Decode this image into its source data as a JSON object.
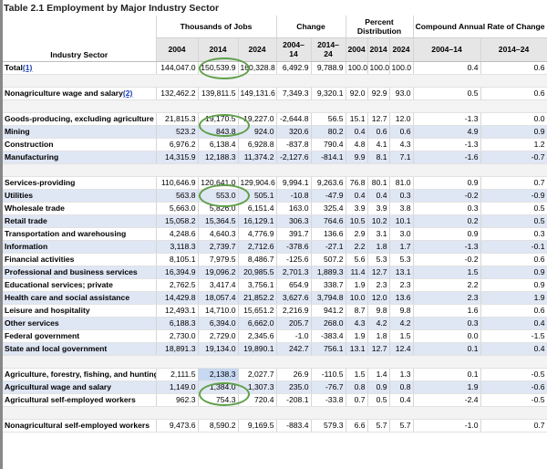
{
  "title": "Table 2.1 Employment by Major Industry Sector",
  "headers": {
    "sector": "Industry Sector",
    "thousands": "Thousands of Jobs",
    "change": "Change",
    "percent": "Percent Distribution",
    "cagr": "Compound Annual Rate of Change",
    "y2004": "2004",
    "y2014": "2014",
    "y2024": "2024",
    "ch1": "2004–14",
    "ch2": "2014–24",
    "p2004": "2004",
    "p2014": "2014",
    "p2024": "2024",
    "c1": "2004–14",
    "c2": "2014–24"
  },
  "rows": [
    {
      "type": "row",
      "level": 0,
      "label": "Total",
      "ref": "(1)",
      "v": [
        "144,047.0",
        "150,539.9",
        "160,328.8",
        "6,492.9",
        "9,788.9",
        "100.0",
        "100.0",
        "100.0",
        "0.4",
        "0.6"
      ]
    },
    {
      "type": "spacer"
    },
    {
      "type": "row",
      "level": 0,
      "label": "Nonagriculture wage and salary",
      "ref": "(2)",
      "v": [
        "132,462.2",
        "139,811.5",
        "149,131.6",
        "7,349.3",
        "9,320.1",
        "92.0",
        "92.9",
        "93.0",
        "0.5",
        "0.6"
      ]
    },
    {
      "type": "spacer"
    },
    {
      "type": "row",
      "level": 0,
      "wrap": true,
      "label": "Goods-producing, excluding agriculture",
      "v": [
        "21,815.3",
        "19,170.5",
        "19,227.0",
        "-2,644.8",
        "56.5",
        "15.1",
        "12.7",
        "12.0",
        "-1.3",
        "0.0"
      ]
    },
    {
      "type": "row",
      "level": 1,
      "sub": true,
      "label": "Mining",
      "v": [
        "523.2",
        "843.8",
        "924.0",
        "320.6",
        "80.2",
        "0.4",
        "0.6",
        "0.6",
        "4.9",
        "0.9"
      ]
    },
    {
      "type": "row",
      "level": 1,
      "sub": false,
      "label": "Construction",
      "v": [
        "6,976.2",
        "6,138.4",
        "6,928.8",
        "-837.8",
        "790.4",
        "4.8",
        "4.1",
        "4.3",
        "-1.3",
        "1.2"
      ]
    },
    {
      "type": "row",
      "level": 1,
      "sub": true,
      "label": "Manufacturing",
      "v": [
        "14,315.9",
        "12,188.3",
        "11,374.2",
        "-2,127.6",
        "-814.1",
        "9.9",
        "8.1",
        "7.1",
        "-1.6",
        "-0.7"
      ]
    },
    {
      "type": "spacer"
    },
    {
      "type": "row",
      "level": 0,
      "label": "Services-providing",
      "v": [
        "110,646.9",
        "120,641.0",
        "129,904.6",
        "9,994.1",
        "9,263.6",
        "76.8",
        "80.1",
        "81.0",
        "0.9",
        "0.7"
      ]
    },
    {
      "type": "row",
      "level": 1,
      "sub": true,
      "label": "Utilities",
      "v": [
        "563.8",
        "553.0",
        "505.1",
        "-10.8",
        "-47.9",
        "0.4",
        "0.4",
        "0.3",
        "-0.2",
        "-0.9"
      ]
    },
    {
      "type": "row",
      "level": 1,
      "sub": false,
      "label": "Wholesale trade",
      "v": [
        "5,663.0",
        "5,826.0",
        "6,151.4",
        "163.0",
        "325.4",
        "3.9",
        "3.9",
        "3.8",
        "0.3",
        "0.5"
      ]
    },
    {
      "type": "row",
      "level": 1,
      "sub": true,
      "label": "Retail trade",
      "v": [
        "15,058.2",
        "15,364.5",
        "16,129.1",
        "306.3",
        "764.6",
        "10.5",
        "10.2",
        "10.1",
        "0.2",
        "0.5"
      ]
    },
    {
      "type": "row",
      "level": 1,
      "sub": false,
      "label": "Transportation and warehousing",
      "v": [
        "4,248.6",
        "4,640.3",
        "4,776.9",
        "391.7",
        "136.6",
        "2.9",
        "3.1",
        "3.0",
        "0.9",
        "0.3"
      ]
    },
    {
      "type": "row",
      "level": 1,
      "sub": true,
      "label": "Information",
      "v": [
        "3,118.3",
        "2,739.7",
        "2,712.6",
        "-378.6",
        "-27.1",
        "2.2",
        "1.8",
        "1.7",
        "-1.3",
        "-0.1"
      ]
    },
    {
      "type": "row",
      "level": 1,
      "sub": false,
      "label": "Financial activities",
      "v": [
        "8,105.1",
        "7,979.5",
        "8,486.7",
        "-125.6",
        "507.2",
        "5.6",
        "5.3",
        "5.3",
        "-0.2",
        "0.6"
      ]
    },
    {
      "type": "row",
      "level": 1,
      "sub": true,
      "label": "Professional and business services",
      "v": [
        "16,394.9",
        "19,096.2",
        "20,985.5",
        "2,701.3",
        "1,889.3",
        "11.4",
        "12.7",
        "13.1",
        "1.5",
        "0.9"
      ]
    },
    {
      "type": "row",
      "level": 1,
      "sub": false,
      "label": "Educational services; private",
      "v": [
        "2,762.5",
        "3,417.4",
        "3,756.1",
        "654.9",
        "338.7",
        "1.9",
        "2.3",
        "2.3",
        "2.2",
        "0.9"
      ]
    },
    {
      "type": "row",
      "level": 1,
      "sub": true,
      "label": "Health care and social assistance",
      "v": [
        "14,429.8",
        "18,057.4",
        "21,852.2",
        "3,627.6",
        "3,794.8",
        "10.0",
        "12.0",
        "13.6",
        "2.3",
        "1.9"
      ]
    },
    {
      "type": "row",
      "level": 1,
      "sub": false,
      "label": "Leisure and hospitality",
      "v": [
        "12,493.1",
        "14,710.0",
        "15,651.2",
        "2,216.9",
        "941.2",
        "8.7",
        "9.8",
        "9.8",
        "1.6",
        "0.6"
      ]
    },
    {
      "type": "row",
      "level": 1,
      "sub": true,
      "label": "Other services",
      "v": [
        "6,188.3",
        "6,394.0",
        "6,662.0",
        "205.7",
        "268.0",
        "4.3",
        "4.2",
        "4.2",
        "0.3",
        "0.4"
      ]
    },
    {
      "type": "row",
      "level": 1,
      "sub": false,
      "label": "Federal government",
      "v": [
        "2,730.0",
        "2,729.0",
        "2,345.6",
        "-1.0",
        "-383.4",
        "1.9",
        "1.8",
        "1.5",
        "0.0",
        "-1.5"
      ]
    },
    {
      "type": "row",
      "level": 1,
      "sub": true,
      "label": "State and local government",
      "v": [
        "18,891.3",
        "19,134.0",
        "19,890.1",
        "242.7",
        "756.1",
        "13.1",
        "12.7",
        "12.4",
        "0.1",
        "0.4"
      ]
    },
    {
      "type": "spacer"
    },
    {
      "type": "row",
      "level": 0,
      "wrap": true,
      "label": "Agriculture, forestry, fishing, and hunting",
      "ref": "(3)",
      "hl": 1,
      "v": [
        "2,111.5",
        "2,138.3",
        "2,027.7",
        "26.9",
        "-110.5",
        "1.5",
        "1.4",
        "1.3",
        "0.1",
        "-0.5"
      ]
    },
    {
      "type": "row",
      "level": 1,
      "sub": true,
      "label": "Agricultural wage and salary",
      "v": [
        "1,149.0",
        "1,384.0",
        "1,307.3",
        "235.0",
        "-76.7",
        "0.8",
        "0.9",
        "0.8",
        "1.9",
        "-0.6"
      ]
    },
    {
      "type": "row",
      "level": 1,
      "sub": false,
      "label": "Agricultural self-employed workers",
      "v": [
        "962.3",
        "754.3",
        "720.4",
        "-208.1",
        "-33.8",
        "0.7",
        "0.5",
        "0.4",
        "-2.4",
        "-0.5"
      ]
    },
    {
      "type": "spacer"
    },
    {
      "type": "row",
      "level": 0,
      "wrap": true,
      "label": "Nonagricultural self-employed workers",
      "v": [
        "9,473.6",
        "8,590.2",
        "9,169.5",
        "-883.4",
        "579.3",
        "6.6",
        "5.7",
        "5.7",
        "-1.0",
        "0.7"
      ]
    }
  ],
  "accent": {
    "circle": "#5fa04a",
    "sub_row": "#dfe6f4",
    "header_bg": "#e6e6e6",
    "link": "#1a3fb8"
  }
}
